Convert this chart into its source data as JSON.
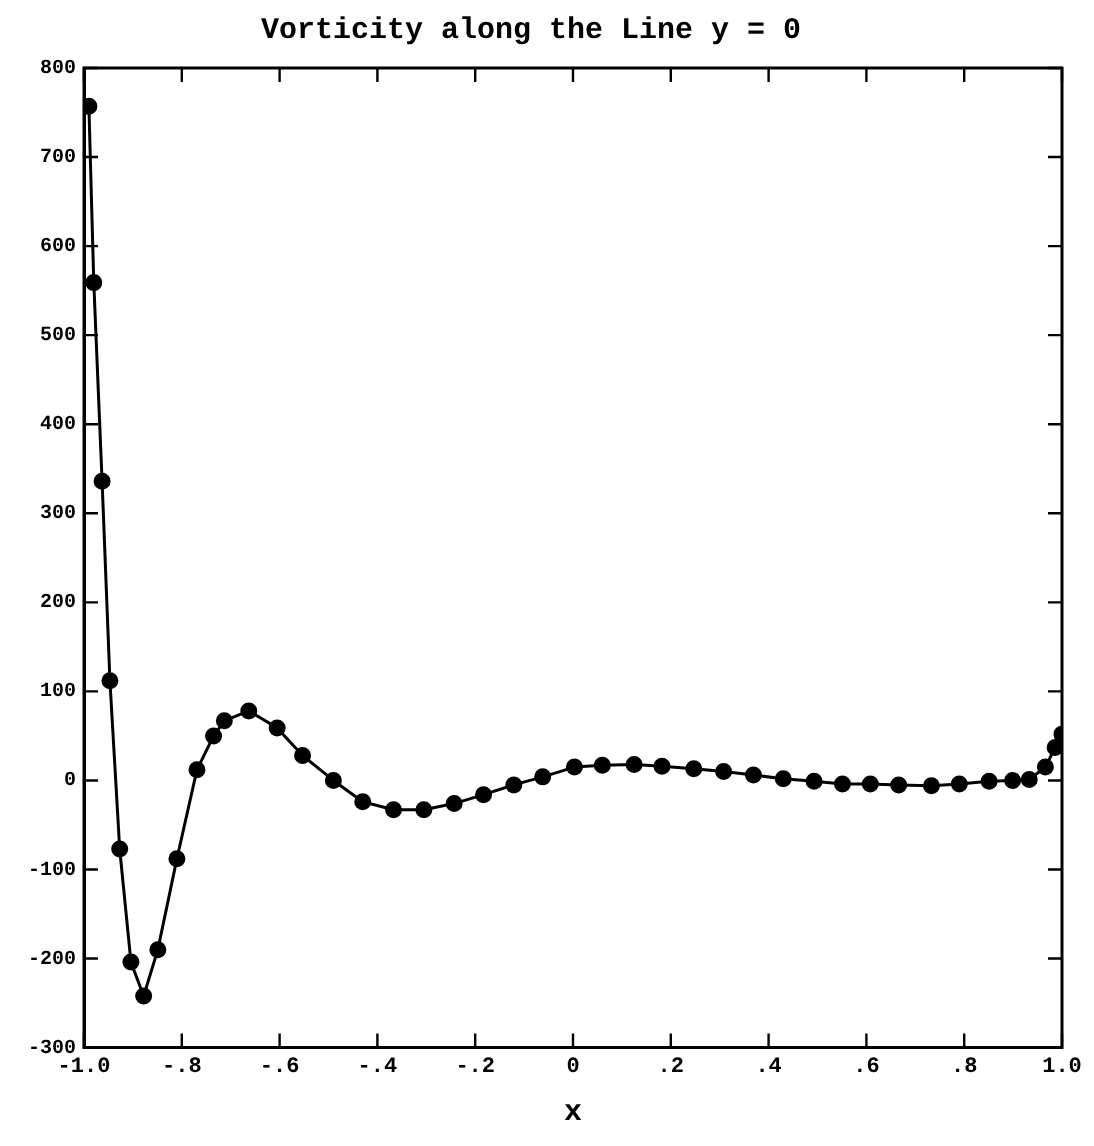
{
  "chart_data": {
    "type": "line",
    "title": "Vorticity along the Line y = 0",
    "xlabel": "x",
    "x": [
      -0.99,
      -0.98,
      -0.963,
      -0.947,
      -0.927,
      -0.904,
      -0.878,
      -0.849,
      -0.81,
      -0.769,
      -0.735,
      -0.713,
      -0.663,
      -0.605,
      -0.553,
      -0.49,
      -0.43,
      -0.367,
      -0.305,
      -0.243,
      -0.183,
      -0.121,
      -0.062,
      0.003,
      0.06,
      0.125,
      0.182,
      0.247,
      0.308,
      0.369,
      0.43,
      0.493,
      0.551,
      0.608,
      0.666,
      0.733,
      0.79,
      0.851,
      0.899,
      0.933,
      0.966,
      0.986,
      1.0
    ],
    "series": [
      {
        "color": "#000000",
        "values": [
          757,
          559,
          336,
          112,
          -77,
          -204,
          -242,
          -190,
          -88,
          12,
          50,
          67,
          78,
          59,
          28,
          0,
          -24,
          -33,
          -33,
          -26,
          -16,
          -5,
          4,
          15,
          17,
          18,
          16,
          13,
          10,
          6,
          2,
          -1,
          -4,
          -4,
          -5,
          -6,
          -4,
          -1,
          0,
          1,
          15,
          37,
          52
        ]
      }
    ],
    "xlim": [
      -1.0,
      1.0
    ],
    "xticks": [
      {
        "value": -1.0,
        "label": "-1.0"
      },
      {
        "value": -0.8,
        "label": "-.8"
      },
      {
        "value": -0.6,
        "label": "-.6"
      },
      {
        "value": -0.4,
        "label": "-.4"
      },
      {
        "value": -0.2,
        "label": "-.2"
      },
      0,
      {
        "value": 0.2,
        "label": ".2"
      },
      {
        "value": 0.4,
        "label": ".4"
      },
      {
        "value": 0.6,
        "label": ".6"
      },
      {
        "value": 0.8,
        "label": ".8"
      },
      {
        "value": 1.0,
        "label": "1.0"
      }
    ],
    "ylim": [
      -300,
      800
    ],
    "yticks": [
      -300,
      -200,
      -100,
      0,
      100,
      200,
      300,
      400,
      500,
      600,
      700,
      800
    ],
    "grid": false,
    "legend": false,
    "marker": "circle",
    "line_style": "solid"
  }
}
